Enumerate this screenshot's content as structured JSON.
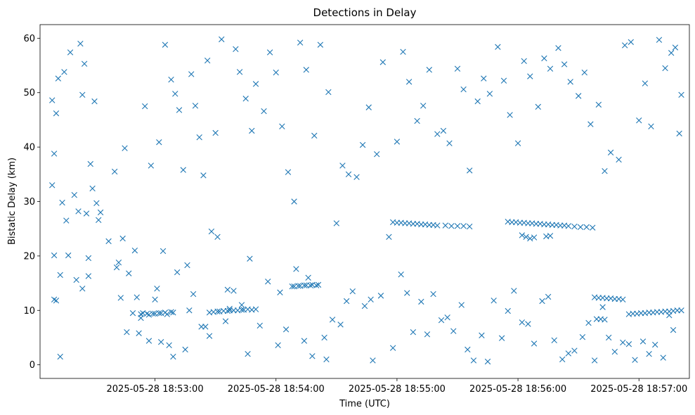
{
  "chart_data": {
    "type": "scatter",
    "title": "Detections in Delay",
    "xlabel": "Time (UTC)",
    "ylabel": "Bistatic Delay (km)",
    "x_start": "2025-05-28 18:52:05",
    "x_unit": "seconds",
    "xlim": [
      -2,
      320
    ],
    "ylim": [
      -2.5,
      62.5
    ],
    "x_ticks": [
      {
        "label": "2025-05-28 18:53:00",
        "value": 55
      },
      {
        "label": "2025-05-28 18:54:00",
        "value": 115
      },
      {
        "label": "2025-05-28 18:55:00",
        "value": 175
      },
      {
        "label": "2025-05-28 18:56:00",
        "value": 235
      },
      {
        "label": "2025-05-28 18:57:00",
        "value": 295
      }
    ],
    "y_ticks": [
      0,
      10,
      20,
      30,
      40,
      50,
      60
    ],
    "grid": false,
    "legend": "none",
    "marker": "x",
    "color": "#1f77b4",
    "series": [
      {
        "x": [
          "2025-05-28 18:52:09",
          "2025-05-28 18:52:09",
          "2025-05-28 18:52:10",
          "2025-05-28 18:52:10",
          "2025-05-28 18:52:11",
          "2025-05-28 18:52:11",
          "2025-05-28 18:52:12",
          "2025-05-28 18:52:13",
          "2025-05-28 18:52:14",
          "2025-05-28 18:52:15",
          "2025-05-28 18:52:16",
          "2025-05-28 18:52:18",
          "2025-05-28 18:52:20",
          "2025-05-28 18:52:22",
          "2025-05-28 18:52:23",
          "2025-05-28 18:52:24",
          "2025-05-28 18:52:25",
          "2025-05-28 18:52:26",
          "2025-05-28 18:52:27",
          "2025-05-28 18:52:28",
          "2025-05-28 18:52:29",
          "2025-05-28 18:52:30",
          "2025-05-28 18:52:31",
          "2025-05-28 18:52:32",
          "2025-05-28 18:52:40",
          "2025-05-28 18:52:42",
          "2025-05-28 18:52:44",
          "2025-05-28 18:52:45",
          "2025-05-28 18:52:47",
          "2025-05-28 18:52:50",
          "2025-05-28 18:52:52",
          "2025-05-28 18:52:55",
          "2025-05-28 18:52:58",
          "2025-05-28 18:53:00",
          "2025-05-28 18:53:02",
          "2025-05-28 18:53:05",
          "2025-05-28 18:53:08",
          "2025-05-28 18:53:10",
          "2025-05-28 18:53:12",
          "2025-05-28 18:53:14",
          "2025-05-28 18:53:16",
          "2025-05-28 18:53:18",
          "2025-05-28 18:53:20",
          "2025-05-28 18:53:22",
          "2025-05-28 18:53:24",
          "2025-05-28 18:53:26",
          "2025-05-28 18:53:28",
          "2025-05-28 18:53:30",
          "2025-05-28 18:53:33",
          "2025-05-28 18:53:36",
          "2025-05-28 18:53:40",
          "2025-05-28 18:53:42",
          "2025-05-28 18:53:45",
          "2025-05-28 18:53:48",
          "2025-05-28 18:53:50",
          "2025-05-28 18:53:54",
          "2025-05-28 18:53:57",
          "2025-05-28 18:54:00",
          "2025-05-28 18:54:03",
          "2025-05-28 18:54:06",
          "2025-05-28 18:54:09",
          "2025-05-28 18:54:12",
          "2025-05-28 18:54:15",
          "2025-05-28 18:54:19",
          "2025-05-28 18:54:22",
          "2025-05-28 18:54:26",
          "2025-05-28 18:54:30",
          "2025-05-28 18:54:33",
          "2025-05-28 18:54:36",
          "2025-05-28 18:54:40",
          "2025-05-28 18:54:43",
          "2025-05-28 18:54:46",
          "2025-05-28 18:54:50",
          "2025-05-28 18:54:53",
          "2025-05-28 18:54:56",
          "2025-05-28 18:55:00",
          "2025-05-28 18:55:03",
          "2025-05-28 18:55:06",
          "2025-05-28 18:55:10",
          "2025-05-28 18:55:13",
          "2025-05-28 18:55:16",
          "2025-05-28 18:55:20",
          "2025-05-28 18:55:23",
          "2025-05-28 18:55:26",
          "2025-05-28 18:55:30",
          "2025-05-28 18:55:33",
          "2025-05-28 18:55:36",
          "2025-05-28 18:55:40",
          "2025-05-28 18:55:43",
          "2025-05-28 18:55:46",
          "2025-05-28 18:55:50",
          "2025-05-28 18:55:53",
          "2025-05-28 18:55:56",
          "2025-05-28 18:56:00",
          "2025-05-28 18:56:03",
          "2025-05-28 18:56:06",
          "2025-05-28 18:56:10",
          "2025-05-28 18:56:13",
          "2025-05-28 18:56:16",
          "2025-05-28 18:56:20",
          "2025-05-28 18:56:23",
          "2025-05-28 18:56:26",
          "2025-05-28 18:56:30",
          "2025-05-28 18:56:33",
          "2025-05-28 18:56:36",
          "2025-05-28 18:56:40",
          "2025-05-28 18:56:43",
          "2025-05-28 18:56:46",
          "2025-05-28 18:56:50",
          "2025-05-28 18:56:53",
          "2025-05-28 18:56:56",
          "2025-05-28 18:57:00",
          "2025-05-28 18:57:03",
          "2025-05-28 18:57:06",
          "2025-05-28 18:57:10",
          "2025-05-28 18:57:13",
          "2025-05-28 18:57:16",
          "2025-05-28 18:57:18",
          "2025-05-28 18:57:20",
          "2025-05-28 18:57:21",
          "2025-05-28 18:52:10",
          "2025-05-28 18:52:13",
          "2025-05-28 18:52:17",
          "2025-05-28 18:52:21",
          "2025-05-28 18:52:24",
          "2025-05-28 18:52:27",
          "2025-05-28 18:52:33",
          "2025-05-28 18:52:37",
          "2025-05-28 18:52:41",
          "2025-05-28 18:52:46",
          "2025-05-28 18:52:49",
          "2025-05-28 18:52:53",
          "2025-05-28 18:52:57",
          "2025-05-28 18:53:01",
          "2025-05-28 18:53:04",
          "2025-05-28 18:53:07",
          "2025-05-28 18:53:11",
          "2025-05-28 18:53:15",
          "2025-05-28 18:53:19",
          "2025-05-28 18:53:23",
          "2025-05-28 18:53:27",
          "2025-05-28 18:53:31",
          "2025-05-28 18:53:35",
          "2025-05-28 18:53:39",
          "2025-05-28 18:53:43",
          "2025-05-28 18:53:47",
          "2025-05-28 18:53:52",
          "2025-05-28 18:53:56",
          "2025-05-28 18:54:01",
          "2025-05-28 18:54:05",
          "2025-05-28 18:54:10",
          "2025-05-28 18:54:14",
          "2025-05-28 18:54:18",
          "2025-05-28 18:54:24",
          "2025-05-28 18:54:28",
          "2025-05-28 18:54:32",
          "2025-05-28 18:54:38",
          "2025-05-28 18:54:44",
          "2025-05-28 18:54:48",
          "2025-05-28 18:54:52",
          "2025-05-28 18:54:58",
          "2025-05-28 18:55:02",
          "2025-05-28 18:55:08",
          "2025-05-28 18:55:12",
          "2025-05-28 18:55:18",
          "2025-05-28 18:55:22",
          "2025-05-28 18:55:28",
          "2025-05-28 18:55:32",
          "2025-05-28 18:55:38",
          "2025-05-28 18:55:42",
          "2025-05-28 18:55:48",
          "2025-05-28 18:55:52",
          "2025-05-28 18:55:58",
          "2025-05-28 18:56:02",
          "2025-05-28 18:56:08",
          "2025-05-28 18:56:12",
          "2025-05-28 18:56:18",
          "2025-05-28 18:56:22",
          "2025-05-28 18:56:28",
          "2025-05-28 18:56:32",
          "2025-05-28 18:56:38",
          "2025-05-28 18:56:42",
          "2025-05-28 18:56:48",
          "2025-05-28 18:56:52",
          "2025-05-28 18:56:58",
          "2025-05-28 18:57:02",
          "2025-05-28 18:57:08",
          "2025-05-28 18:57:12",
          "2025-05-28 18:57:17",
          "2025-05-28 18:52:43",
          "2025-05-28 18:52:51",
          "2025-05-28 18:53:03",
          "2025-05-28 18:53:09",
          "2025-05-28 18:53:17",
          "2025-05-28 18:53:25",
          "2025-05-28 18:53:37",
          "2025-05-28 18:53:46",
          "2025-05-28 18:54:02",
          "2025-05-28 18:54:16",
          "2025-05-28 18:54:25",
          "2025-05-28 18:54:35",
          "2025-05-28 18:54:47",
          "2025-05-28 18:55:05",
          "2025-05-28 18:55:15",
          "2025-05-28 18:55:25",
          "2025-05-28 18:55:35",
          "2025-05-28 18:55:45",
          "2025-05-28 18:55:55",
          "2025-05-28 18:56:05",
          "2025-05-28 18:56:15",
          "2025-05-28 18:56:25",
          "2025-05-28 18:56:35",
          "2025-05-28 18:56:45",
          "2025-05-28 18:56:55",
          "2025-05-28 18:57:05",
          "2025-05-28 18:57:15",
          "2025-05-28 18:52:53",
          "2025-05-28 18:52:54",
          "2025-05-28 18:52:56",
          "2025-05-28 18:52:57",
          "2025-05-28 18:52:59",
          "2025-05-28 18:53:00",
          "2025-05-28 18:53:02",
          "2025-05-28 18:53:03",
          "2025-05-28 18:53:05",
          "2025-05-28 18:53:06",
          "2025-05-28 18:53:08",
          "2025-05-28 18:53:09",
          "2025-05-28 18:53:27",
          "2025-05-28 18:53:29",
          "2025-05-28 18:53:31",
          "2025-05-28 18:53:32",
          "2025-05-28 18:53:34",
          "2025-05-28 18:53:36",
          "2025-05-28 18:53:37",
          "2025-05-28 18:53:39",
          "2025-05-28 18:53:41",
          "2025-05-28 18:53:43",
          "2025-05-28 18:53:44",
          "2025-05-28 18:53:46",
          "2025-05-28 18:53:48",
          "2025-05-28 18:53:50",
          "2025-05-28 18:54:08",
          "2025-05-28 18:54:09",
          "2025-05-28 18:54:11",
          "2025-05-28 18:54:12",
          "2025-05-28 18:54:14",
          "2025-05-28 18:54:15",
          "2025-05-28 18:54:17",
          "2025-05-28 18:54:18",
          "2025-05-28 18:54:20",
          "2025-05-28 18:54:21",
          "2025-05-28 18:54:58",
          "2025-05-28 18:55:00",
          "2025-05-28 18:55:02",
          "2025-05-28 18:55:04",
          "2025-05-28 18:55:06",
          "2025-05-28 18:55:08",
          "2025-05-28 18:55:10",
          "2025-05-28 18:55:12",
          "2025-05-28 18:55:14",
          "2025-05-28 18:55:16",
          "2025-05-28 18:55:18",
          "2025-05-28 18:55:20",
          "2025-05-28 18:55:24",
          "2025-05-28 18:55:27",
          "2025-05-28 18:55:30",
          "2025-05-28 18:55:33",
          "2025-05-28 18:55:36",
          "2025-05-28 18:55:55",
          "2025-05-28 18:55:57",
          "2025-05-28 18:55:59",
          "2025-05-28 18:56:01",
          "2025-05-28 18:56:03",
          "2025-05-28 18:56:05",
          "2025-05-28 18:56:07",
          "2025-05-28 18:56:09",
          "2025-05-28 18:56:11",
          "2025-05-28 18:56:13",
          "2025-05-28 18:56:15",
          "2025-05-28 18:56:17",
          "2025-05-28 18:56:19",
          "2025-05-28 18:56:21",
          "2025-05-28 18:56:23",
          "2025-05-28 18:56:25",
          "2025-05-28 18:56:28",
          "2025-05-28 18:56:31",
          "2025-05-28 18:56:34",
          "2025-05-28 18:56:37",
          "2025-05-28 18:56:02",
          "2025-05-28 18:56:04",
          "2025-05-28 18:56:06",
          "2025-05-28 18:56:08",
          "2025-05-28 18:56:14",
          "2025-05-28 18:56:16",
          "2025-05-28 18:56:38",
          "2025-05-28 18:56:40",
          "2025-05-28 18:56:42",
          "2025-05-28 18:56:44",
          "2025-05-28 18:56:46",
          "2025-05-28 18:56:48",
          "2025-05-28 18:56:50",
          "2025-05-28 18:56:52",
          "2025-05-28 18:56:39",
          "2025-05-28 18:56:41",
          "2025-05-28 18:56:43",
          "2025-05-28 18:56:55",
          "2025-05-28 18:56:57",
          "2025-05-28 18:56:59",
          "2025-05-28 18:57:01",
          "2025-05-28 18:57:03",
          "2025-05-28 18:57:05",
          "2025-05-28 18:57:07",
          "2025-05-28 18:57:09",
          "2025-05-28 18:57:11",
          "2025-05-28 18:57:13",
          "2025-05-28 18:57:15",
          "2025-05-28 18:57:17",
          "2025-05-28 18:57:19",
          "2025-05-28 18:57:21"
        ],
        "y": [
          48.6,
          33.0,
          12.0,
          38.8,
          46.2,
          11.8,
          52.6,
          1.5,
          29.8,
          53.8,
          26.5,
          57.4,
          31.2,
          28.2,
          59.0,
          49.6,
          55.3,
          27.8,
          16.3,
          36.9,
          32.4,
          48.4,
          29.7,
          26.6,
          35.5,
          18.8,
          23.2,
          39.8,
          16.8,
          21.0,
          5.8,
          47.5,
          36.6,
          12.0,
          40.9,
          58.8,
          52.4,
          49.8,
          46.8,
          35.8,
          18.3,
          53.4,
          47.6,
          41.8,
          34.8,
          55.9,
          24.5,
          42.6,
          59.8,
          13.8,
          58.0,
          53.8,
          48.9,
          43.0,
          51.6,
          46.6,
          57.4,
          53.7,
          43.8,
          35.4,
          30.0,
          59.2,
          54.2,
          42.1,
          58.8,
          50.1,
          26.0,
          36.6,
          35.0,
          34.5,
          40.4,
          47.3,
          38.7,
          55.6,
          23.5,
          41.0,
          57.5,
          52.0,
          44.8,
          47.6,
          54.2,
          42.4,
          43.0,
          40.7,
          54.4,
          50.6,
          35.7,
          48.4,
          52.6,
          49.8,
          58.4,
          52.2,
          45.9,
          40.7,
          55.8,
          53.0,
          47.4,
          56.3,
          54.4,
          58.2,
          55.2,
          52.0,
          49.4,
          53.7,
          44.2,
          47.8,
          35.6,
          39.0,
          37.7,
          58.7,
          59.3,
          44.9,
          51.7,
          43.8,
          59.7,
          54.5,
          57.3,
          58.3,
          42.5,
          49.6,
          20.1,
          16.5,
          20.1,
          15.6,
          14.0,
          19.6,
          28.0,
          22.7,
          17.9,
          6.0,
          9.5,
          8.6,
          4.4,
          14.0,
          20.9,
          3.6,
          17.0,
          2.8,
          13.0,
          7.0,
          5.3,
          23.5,
          8.0,
          13.6,
          11.0,
          19.5,
          7.2,
          15.3,
          3.6,
          6.5,
          17.6,
          4.4,
          1.6,
          5.0,
          8.3,
          7.4,
          13.5,
          10.8,
          0.8,
          12.7,
          3.1,
          16.6,
          6.0,
          11.6,
          13.0,
          8.2,
          6.2,
          11.0,
          0.8,
          5.4,
          11.8,
          4.9,
          13.6,
          7.8,
          3.9,
          11.7,
          4.5,
          1.0,
          2.6,
          5.1,
          0.8,
          10.6,
          2.4,
          4.1,
          0.9,
          4.3,
          3.7,
          1.3,
          6.4,
          12.3,
          12.4,
          4.2,
          1.5,
          10.0,
          7.0,
          10.3,
          2.0,
          13.3,
          16.0,
          1.0,
          11.7,
          12.0,
          13.2,
          5.6,
          8.7,
          2.8,
          0.6,
          9.9,
          7.5,
          12.5,
          2.1,
          7.7,
          5.0,
          3.8,
          2.0,
          9.1,
          9.3,
          9.5,
          9.4,
          9.2,
          9.4,
          9.4,
          9.5,
          9.5,
          9.6,
          9.3,
          9.7,
          9.6,
          9.6,
          9.7,
          9.8,
          9.8,
          9.9,
          9.9,
          10.0,
          10.0,
          10.0,
          10.1,
          10.1,
          10.2,
          10.1,
          10.2,
          14.4,
          14.4,
          14.5,
          14.5,
          14.6,
          14.6,
          14.6,
          14.7,
          14.6,
          14.7,
          26.2,
          26.1,
          26.1,
          26.0,
          26.0,
          25.9,
          25.9,
          25.8,
          25.8,
          25.7,
          25.7,
          25.6,
          25.6,
          25.5,
          25.5,
          25.5,
          25.4,
          26.3,
          26.2,
          26.2,
          26.1,
          26.1,
          26.0,
          26.0,
          25.9,
          25.9,
          25.8,
          25.8,
          25.7,
          25.7,
          25.6,
          25.6,
          25.5,
          25.4,
          25.3,
          25.3,
          25.2,
          23.8,
          23.5,
          23.2,
          23.4,
          23.6,
          23.7,
          12.4,
          12.3,
          12.3,
          12.2,
          12.2,
          12.1,
          12.1,
          12.0,
          8.4,
          8.4,
          8.3,
          9.3,
          9.4,
          9.4,
          9.5,
          9.5,
          9.6,
          9.6,
          9.7,
          9.7,
          9.8,
          9.8,
          9.9,
          10.0,
          10.0
        ]
      }
    ]
  }
}
